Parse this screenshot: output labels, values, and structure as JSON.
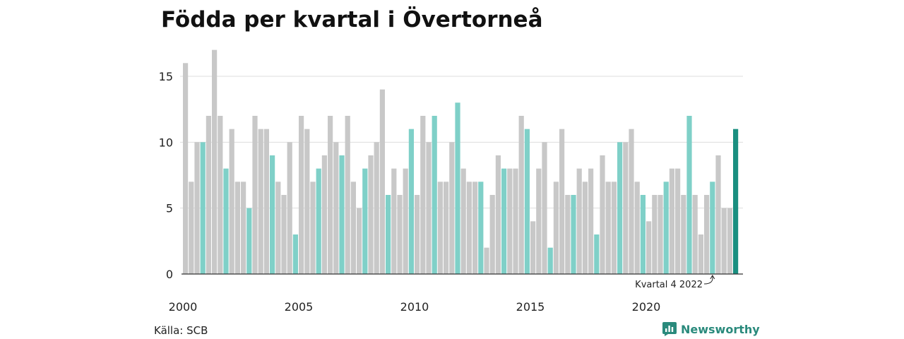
{
  "title": "Födda per kvartal i Övertorneå",
  "source": "Källa: SCB",
  "brand": {
    "name": "Newsworthy",
    "icon": "newsworthy-logo-icon"
  },
  "colors": {
    "bar_default": "#c8c8c8",
    "bar_q4": "#7fd0c8",
    "bar_latest": "#1a8f80",
    "grid": "#dddddd",
    "axis": "#333333",
    "brand": "#2a8a7c"
  },
  "chart_data": {
    "type": "bar",
    "title": "Födda per kvartal i Övertorneå",
    "xlabel": "",
    "ylabel": "",
    "ylim": [
      0,
      17
    ],
    "y_ticks": [
      0,
      5,
      10,
      15
    ],
    "x_tick_labels": [
      "2000",
      "2005",
      "2010",
      "2015",
      "2020"
    ],
    "grid": true,
    "legend": "none",
    "highlight": "quarter 4 bars highlighted; latest bar darkest",
    "annotation": {
      "text": "Kvartal 4 2022",
      "target": "2022 Q4"
    },
    "start_year": 2000,
    "values": [
      16,
      7,
      10,
      10,
      12,
      17,
      12,
      8,
      11,
      7,
      7,
      5,
      12,
      11,
      11,
      9,
      7,
      6,
      10,
      3,
      12,
      11,
      7,
      8,
      9,
      12,
      10,
      9,
      12,
      7,
      5,
      8,
      9,
      10,
      14,
      6,
      8,
      6,
      8,
      11,
      6,
      12,
      10,
      12,
      7,
      7,
      10,
      13,
      8,
      7,
      7,
      7,
      2,
      6,
      9,
      8,
      8,
      8,
      12,
      11,
      4,
      8,
      10,
      2,
      7,
      11,
      6,
      6,
      8,
      7,
      8,
      3,
      9,
      7,
      7,
      10,
      10,
      11,
      7,
      6,
      4,
      6,
      6,
      7,
      8,
      8,
      6,
      12,
      6,
      3,
      6,
      7,
      9,
      5,
      5,
      11
    ]
  }
}
